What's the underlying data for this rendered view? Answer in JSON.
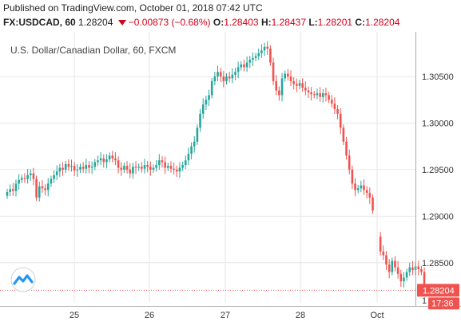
{
  "header": {
    "published": "Published on TradingView.com, October 01, 2018 07:42 UTC",
    "symbol": "FX:USDCAD, 60",
    "last": "1.28204",
    "change": "−0.00873 (−0.68%)",
    "o_label": "O:",
    "o_value": "1.28403",
    "h_label": "H:",
    "h_value": "1.28437",
    "l_label": "L:",
    "l_value": "1.28201",
    "c_label": "C:",
    "c_value": "1.28204"
  },
  "colors": {
    "up": "#26a69a",
    "down": "#ef5350",
    "grid": "#e6e6e6",
    "price_tag": "#ef5350",
    "last_line": "#ef5350",
    "accent_red": "#d0021b",
    "logo": "#2196f3"
  },
  "icons": {
    "logo": "tradingview-logo-icon"
  },
  "chart_data": {
    "type": "candlestick",
    "title": "U.S. Dollar/Canadian Dollar, 60, FXCM",
    "xlabel": "",
    "ylabel": "",
    "ylim": [
      1.2807,
      1.3098
    ],
    "x_ticks": [
      "25",
      "26",
      "27",
      "28",
      "Oct"
    ],
    "y_ticks": [
      1.305,
      1.3,
      1.295,
      1.29,
      1.285
    ],
    "y_tick_labels": [
      "1.30500",
      "1.30000",
      "1.29500",
      "1.29000",
      "1.28500"
    ],
    "last_price_label": "1.28204",
    "last_price": 1.28204,
    "countdown_label": "17:36",
    "bottom_tick_label": "1",
    "grid": true,
    "closes": [
      1.2926,
      1.2929,
      1.2927,
      1.2935,
      1.2939,
      1.2941,
      1.294,
      1.2944,
      1.2946,
      1.294,
      1.292,
      1.2932,
      1.293,
      1.2928,
      1.2935,
      1.294,
      1.2944,
      1.2948,
      1.2952,
      1.295,
      1.2956,
      1.2953,
      1.2954,
      1.2949,
      1.295,
      1.2953,
      1.2951,
      1.2955,
      1.2952,
      1.2953,
      1.2958,
      1.296,
      1.2962,
      1.2958,
      1.2961,
      1.2965,
      1.2962,
      1.296,
      1.2952,
      1.295,
      1.2954,
      1.295,
      1.2946,
      1.2953,
      1.2952,
      1.2953,
      1.2951,
      1.2955,
      1.2953,
      1.295,
      1.2952,
      1.2955,
      1.296,
      1.2958,
      1.2952,
      1.2954,
      1.2951,
      1.295,
      1.2948,
      1.2952,
      1.2955,
      1.296,
      1.2967,
      1.2975,
      1.298,
      1.2995,
      1.301,
      1.302,
      1.3025,
      1.303,
      1.3045,
      1.305,
      1.3055,
      1.305,
      1.3045,
      1.305,
      1.3048,
      1.3052,
      1.3055,
      1.306,
      1.3063,
      1.306,
      1.3065,
      1.3068,
      1.307,
      1.3072,
      1.3075,
      1.3078,
      1.3082,
      1.308,
      1.3065,
      1.3045,
      1.3035,
      1.303,
      1.3048,
      1.3053,
      1.305,
      1.3045,
      1.3042,
      1.304,
      1.3043,
      1.3038,
      1.3035,
      1.3033,
      1.3031,
      1.303,
      1.3032,
      1.3028,
      1.3032,
      1.303,
      1.3025,
      1.3021,
      1.3015,
      1.301,
      1.2995,
      1.298,
      1.2965,
      1.295,
      1.2935,
      1.2928,
      1.293,
      1.2933,
      1.2928,
      1.2925,
      1.292,
      1.2906,
      1.2862,
      1.2858,
      1.2848,
      1.284,
      1.2852,
      1.2845,
      1.2838,
      1.283,
      1.2834,
      1.284,
      1.2845,
      1.2842,
      1.2846,
      1.2843,
      1.284,
      1.282
    ]
  }
}
